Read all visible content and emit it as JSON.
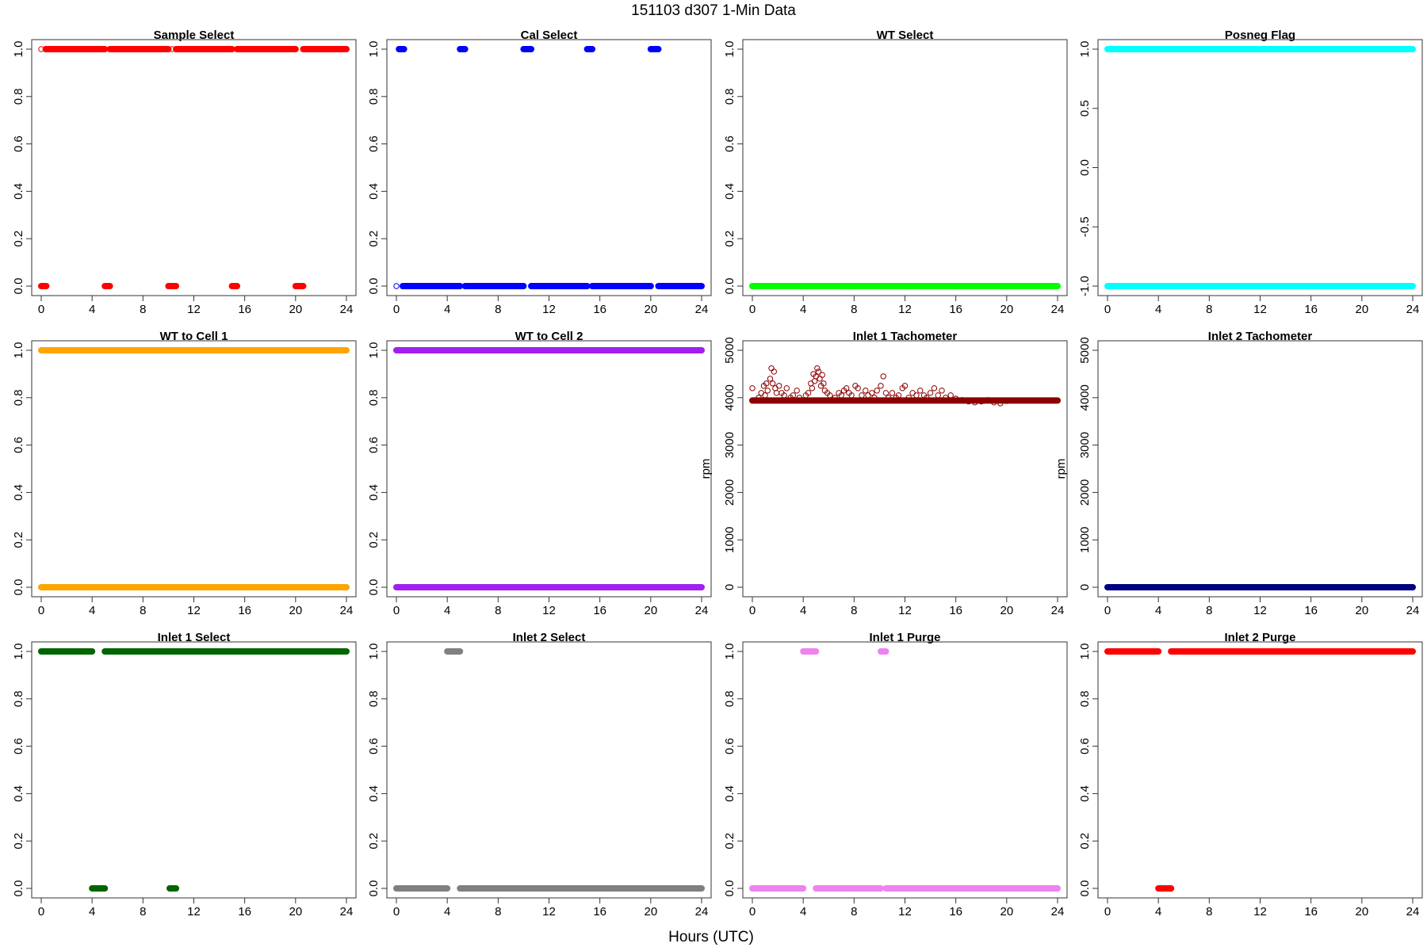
{
  "title": "151103   d307   1-Min Data",
  "xlabel": "Hours (UTC)",
  "chart_data": [
    {
      "type": "scatter",
      "title": "Sample Select",
      "color": "#ff0000",
      "xlim": [
        0,
        24
      ],
      "ylim": [
        0,
        1
      ],
      "xticks": [
        0,
        4,
        8,
        12,
        16,
        20,
        24
      ],
      "yticks": [
        0,
        0.2,
        0.4,
        0.6,
        0.8,
        1.0
      ],
      "ytick_labels": [
        "0.0",
        "0.2",
        "0.4",
        "0.6",
        "0.8",
        "1.0"
      ],
      "ylabel": "",
      "segments": [
        [
          0.35,
          5.0,
          1
        ],
        [
          5.4,
          10.0,
          1
        ],
        [
          10.6,
          15.0,
          1
        ],
        [
          15.4,
          20.0,
          1
        ],
        [
          20.6,
          24.0,
          1
        ],
        [
          0.0,
          0.4,
          0
        ],
        [
          5.0,
          5.4,
          0
        ],
        [
          10.0,
          10.6,
          0
        ],
        [
          15.0,
          15.4,
          0
        ],
        [
          20.0,
          20.6,
          0
        ]
      ],
      "points": [
        [
          0.0,
          1
        ],
        [
          10.3,
          1
        ]
      ]
    },
    {
      "type": "scatter",
      "title": "Cal Select",
      "color": "#0000ff",
      "xlim": [
        0,
        24
      ],
      "ylim": [
        0,
        1
      ],
      "xticks": [
        0,
        4,
        8,
        12,
        16,
        20,
        24
      ],
      "yticks": [
        0,
        0.2,
        0.4,
        0.6,
        0.8,
        1.0
      ],
      "ytick_labels": [
        "0.0",
        "0.2",
        "0.4",
        "0.6",
        "0.8",
        "1.0"
      ],
      "ylabel": "",
      "segments": [
        [
          0.2,
          0.6,
          1
        ],
        [
          5.0,
          5.4,
          1
        ],
        [
          10.0,
          10.6,
          1
        ],
        [
          15.0,
          15.4,
          1
        ],
        [
          20.0,
          20.6,
          1
        ],
        [
          0.5,
          5.0,
          0
        ],
        [
          5.4,
          10.0,
          0
        ],
        [
          10.6,
          15.0,
          0
        ],
        [
          15.4,
          20.0,
          0
        ],
        [
          20.6,
          24.0,
          0
        ]
      ],
      "points": [
        [
          0.0,
          0
        ],
        [
          10.4,
          1
        ]
      ]
    },
    {
      "type": "scatter",
      "title": "WT Select",
      "color": "#00ff00",
      "xlim": [
        0,
        24
      ],
      "ylim": [
        0,
        1
      ],
      "xticks": [
        0,
        4,
        8,
        12,
        16,
        20,
        24
      ],
      "yticks": [
        0,
        0.2,
        0.4,
        0.6,
        0.8,
        1.0
      ],
      "ytick_labels": [
        "0.0",
        "0.2",
        "0.4",
        "0.6",
        "0.8",
        "1.0"
      ],
      "ylabel": "",
      "segments": [
        [
          0.0,
          24.0,
          0
        ]
      ],
      "points": []
    },
    {
      "type": "scatter",
      "title": "Posneg Flag",
      "color": "#00ffff",
      "xlim": [
        0,
        24
      ],
      "ylim": [
        -1,
        1
      ],
      "xticks": [
        0,
        4,
        8,
        12,
        16,
        20,
        24
      ],
      "yticks": [
        -1.0,
        -0.5,
        0.0,
        0.5,
        1.0
      ],
      "ytick_labels": [
        "-1.0",
        "-0.5",
        "0.0",
        "0.5",
        "1.0"
      ],
      "ylabel": "",
      "segments": [
        [
          0.0,
          24.0,
          1
        ],
        [
          0.0,
          24.0,
          -1
        ]
      ],
      "points": []
    },
    {
      "type": "scatter",
      "title": "WT to Cell 1",
      "color": "#ffa500",
      "xlim": [
        0,
        24
      ],
      "ylim": [
        0,
        1
      ],
      "xticks": [
        0,
        4,
        8,
        12,
        16,
        20,
        24
      ],
      "yticks": [
        0,
        0.2,
        0.4,
        0.6,
        0.8,
        1.0
      ],
      "ytick_labels": [
        "0.0",
        "0.2",
        "0.4",
        "0.6",
        "0.8",
        "1.0"
      ],
      "ylabel": "",
      "segments": [
        [
          0.0,
          24.0,
          1
        ],
        [
          0.0,
          24.0,
          0
        ]
      ],
      "points": []
    },
    {
      "type": "scatter",
      "title": "WT to Cell 2",
      "color": "#a020f0",
      "xlim": [
        0,
        24
      ],
      "ylim": [
        0,
        1
      ],
      "xticks": [
        0,
        4,
        8,
        12,
        16,
        20,
        24
      ],
      "yticks": [
        0,
        0.2,
        0.4,
        0.6,
        0.8,
        1.0
      ],
      "ytick_labels": [
        "0.0",
        "0.2",
        "0.4",
        "0.6",
        "0.8",
        "1.0"
      ],
      "ylabel": "",
      "segments": [
        [
          0.0,
          24.0,
          1
        ],
        [
          0.0,
          24.0,
          0
        ]
      ],
      "points": []
    },
    {
      "type": "scatter",
      "title": "Inlet 1 Tachometer",
      "color": "#8b0000",
      "xlim": [
        0,
        24
      ],
      "ylim": [
        0,
        5000
      ],
      "xticks": [
        0,
        4,
        8,
        12,
        16,
        20,
        24
      ],
      "yticks": [
        0,
        1000,
        2000,
        3000,
        4000,
        5000
      ],
      "ytick_labels": [
        "0",
        "1000",
        "2000",
        "3000",
        "4000",
        "5000"
      ],
      "ylabel": "rpm",
      "segments": [
        [
          0.0,
          24.0,
          3940
        ]
      ],
      "points": [
        [
          0.0,
          4200
        ],
        [
          0.5,
          4000
        ],
        [
          0.7,
          4100
        ],
        [
          0.9,
          4250
        ],
        [
          1.0,
          4050
        ],
        [
          1.1,
          4300
        ],
        [
          1.2,
          4150
        ],
        [
          1.4,
          4400
        ],
        [
          1.5,
          4620
        ],
        [
          1.6,
          4300
        ],
        [
          1.7,
          4550
        ],
        [
          1.8,
          4200
        ],
        [
          1.9,
          4100
        ],
        [
          2.1,
          4250
        ],
        [
          2.3,
          4100
        ],
        [
          2.5,
          4050
        ],
        [
          2.7,
          4200
        ],
        [
          3.0,
          4000
        ],
        [
          3.2,
          4050
        ],
        [
          3.5,
          4150
        ],
        [
          3.7,
          4000
        ],
        [
          4.2,
          4050
        ],
        [
          4.4,
          4100
        ],
        [
          4.6,
          4300
        ],
        [
          4.7,
          4200
        ],
        [
          4.8,
          4500
        ],
        [
          4.9,
          4350
        ],
        [
          5.0,
          4450
        ],
        [
          5.1,
          4620
        ],
        [
          5.2,
          4550
        ],
        [
          5.3,
          4400
        ],
        [
          5.4,
          4250
        ],
        [
          5.5,
          4480
        ],
        [
          5.6,
          4300
        ],
        [
          5.7,
          4150
        ],
        [
          5.9,
          4100
        ],
        [
          6.1,
          4050
        ],
        [
          6.5,
          4000
        ],
        [
          6.8,
          4100
        ],
        [
          7.0,
          4050
        ],
        [
          7.2,
          4150
        ],
        [
          7.4,
          4200
        ],
        [
          7.6,
          4100
        ],
        [
          7.8,
          4050
        ],
        [
          8.1,
          4250
        ],
        [
          8.3,
          4200
        ],
        [
          8.6,
          4050
        ],
        [
          8.9,
          4150
        ],
        [
          9.1,
          4050
        ],
        [
          9.4,
          4100
        ],
        [
          9.6,
          4000
        ],
        [
          9.8,
          4150
        ],
        [
          10.1,
          4250
        ],
        [
          10.3,
          4450
        ],
        [
          10.5,
          4100
        ],
        [
          10.7,
          4000
        ],
        [
          11.0,
          4100
        ],
        [
          11.3,
          4000
        ],
        [
          11.5,
          4050
        ],
        [
          11.8,
          4200
        ],
        [
          12.0,
          4250
        ],
        [
          12.3,
          4000
        ],
        [
          12.6,
          4100
        ],
        [
          12.9,
          4050
        ],
        [
          13.2,
          4150
        ],
        [
          13.5,
          4050
        ],
        [
          13.7,
          4000
        ],
        [
          14.0,
          4100
        ],
        [
          14.3,
          4200
        ],
        [
          14.6,
          4050
        ],
        [
          14.9,
          4150
        ],
        [
          15.2,
          4000
        ],
        [
          15.6,
          4050
        ],
        [
          16.0,
          3980
        ],
        [
          16.5,
          3950
        ],
        [
          17.0,
          3920
        ],
        [
          17.5,
          3900
        ],
        [
          18.0,
          3920
        ],
        [
          18.5,
          3950
        ],
        [
          19.0,
          3900
        ],
        [
          19.5,
          3880
        ],
        [
          20.0,
          3930
        ]
      ]
    },
    {
      "type": "scatter",
      "title": "Inlet 2 Tachometer",
      "color": "#000080",
      "xlim": [
        0,
        24
      ],
      "ylim": [
        0,
        5000
      ],
      "xticks": [
        0,
        4,
        8,
        12,
        16,
        20,
        24
      ],
      "yticks": [
        0,
        1000,
        2000,
        3000,
        4000,
        5000
      ],
      "ytick_labels": [
        "0",
        "1000",
        "2000",
        "3000",
        "4000",
        "5000"
      ],
      "ylabel": "rpm",
      "segments": [
        [
          0.0,
          24.0,
          0
        ]
      ],
      "points": []
    },
    {
      "type": "scatter",
      "title": "Inlet 1 Select",
      "color": "#006400",
      "xlim": [
        0,
        24
      ],
      "ylim": [
        0,
        1
      ],
      "xticks": [
        0,
        4,
        8,
        12,
        16,
        20,
        24
      ],
      "yticks": [
        0,
        0.2,
        0.4,
        0.6,
        0.8,
        1.0
      ],
      "ytick_labels": [
        "0.0",
        "0.2",
        "0.4",
        "0.6",
        "0.8",
        "1.0"
      ],
      "ylabel": "",
      "segments": [
        [
          0.0,
          4.0,
          1
        ],
        [
          5.0,
          24.0,
          1
        ],
        [
          4.0,
          5.0,
          0
        ],
        [
          10.1,
          10.6,
          0
        ]
      ],
      "points": []
    },
    {
      "type": "scatter",
      "title": "Inlet 2 Select",
      "color": "#808080",
      "xlim": [
        0,
        24
      ],
      "ylim": [
        0,
        1
      ],
      "xticks": [
        0,
        4,
        8,
        12,
        16,
        20,
        24
      ],
      "yticks": [
        0,
        0.2,
        0.4,
        0.6,
        0.8,
        1.0
      ],
      "ytick_labels": [
        "0.0",
        "0.2",
        "0.4",
        "0.6",
        "0.8",
        "1.0"
      ],
      "ylabel": "",
      "segments": [
        [
          4.0,
          5.0,
          1
        ],
        [
          0.0,
          4.0,
          0
        ],
        [
          5.0,
          24.0,
          0
        ]
      ],
      "points": []
    },
    {
      "type": "scatter",
      "title": "Inlet 1 Purge",
      "color": "#ee82ee",
      "xlim": [
        0,
        24
      ],
      "ylim": [
        0,
        1
      ],
      "xticks": [
        0,
        4,
        8,
        12,
        16,
        20,
        24
      ],
      "yticks": [
        0,
        0.2,
        0.4,
        0.6,
        0.8,
        1.0
      ],
      "ytick_labels": [
        "0.0",
        "0.2",
        "0.4",
        "0.6",
        "0.8",
        "1.0"
      ],
      "ylabel": "",
      "segments": [
        [
          4.0,
          5.0,
          1
        ],
        [
          10.1,
          10.5,
          1
        ],
        [
          0.0,
          4.0,
          0
        ],
        [
          5.0,
          10.1,
          0
        ],
        [
          10.5,
          24.0,
          0
        ]
      ],
      "points": []
    },
    {
      "type": "scatter",
      "title": "Inlet 2 Purge",
      "color": "#ff0000",
      "xlim": [
        0,
        24
      ],
      "ylim": [
        0,
        1
      ],
      "xticks": [
        0,
        4,
        8,
        12,
        16,
        20,
        24
      ],
      "yticks": [
        0,
        0.2,
        0.4,
        0.6,
        0.8,
        1.0
      ],
      "ytick_labels": [
        "0.0",
        "0.2",
        "0.4",
        "0.6",
        "0.8",
        "1.0"
      ],
      "ylabel": "",
      "segments": [
        [
          0.0,
          4.0,
          1
        ],
        [
          5.0,
          24.0,
          1
        ],
        [
          4.0,
          5.0,
          0
        ]
      ],
      "points": []
    }
  ]
}
